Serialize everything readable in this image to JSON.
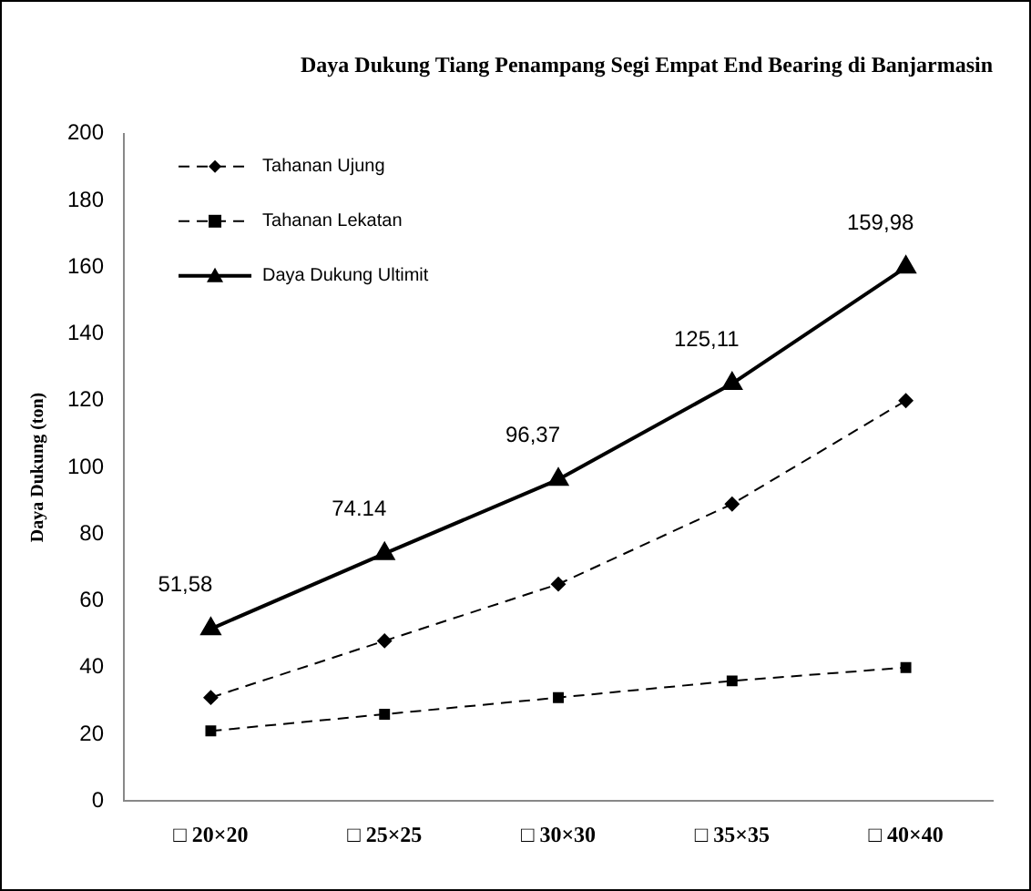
{
  "chart_data": {
    "type": "line",
    "title": "Daya Dukung Tiang Penampang Segi Empat End Bearing di Banjarmasin",
    "ylabel": "Daya Dukung (ton)",
    "categories": [
      "□ 20×20",
      "□ 25×25",
      "□ 30×30",
      "□ 35×35",
      "□ 40×40"
    ],
    "ylim": [
      0,
      200
    ],
    "yticks": [
      0,
      20,
      40,
      60,
      80,
      100,
      120,
      140,
      160,
      180,
      200
    ],
    "grid": false,
    "legend": "top left",
    "series": [
      {
        "name": "Tahanan Ujung",
        "color": "#000000",
        "marker": "diamond",
        "line_style": "dashed",
        "values": [
          31,
          48,
          65,
          89,
          120
        ]
      },
      {
        "name": "Tahanan Lekatan",
        "color": "#000000",
        "marker": "square",
        "line_style": "dashed",
        "values": [
          21,
          26,
          31,
          36,
          40
        ]
      },
      {
        "name": "Daya Dukung Ultimit",
        "color": "#000000",
        "marker": "triangle",
        "line_style": "solid",
        "values": [
          51.58,
          74.14,
          96.37,
          125.11,
          159.98
        ],
        "value_labels": [
          "51,58",
          "74.14",
          "96,37",
          "125,11",
          "159,98"
        ]
      }
    ]
  }
}
